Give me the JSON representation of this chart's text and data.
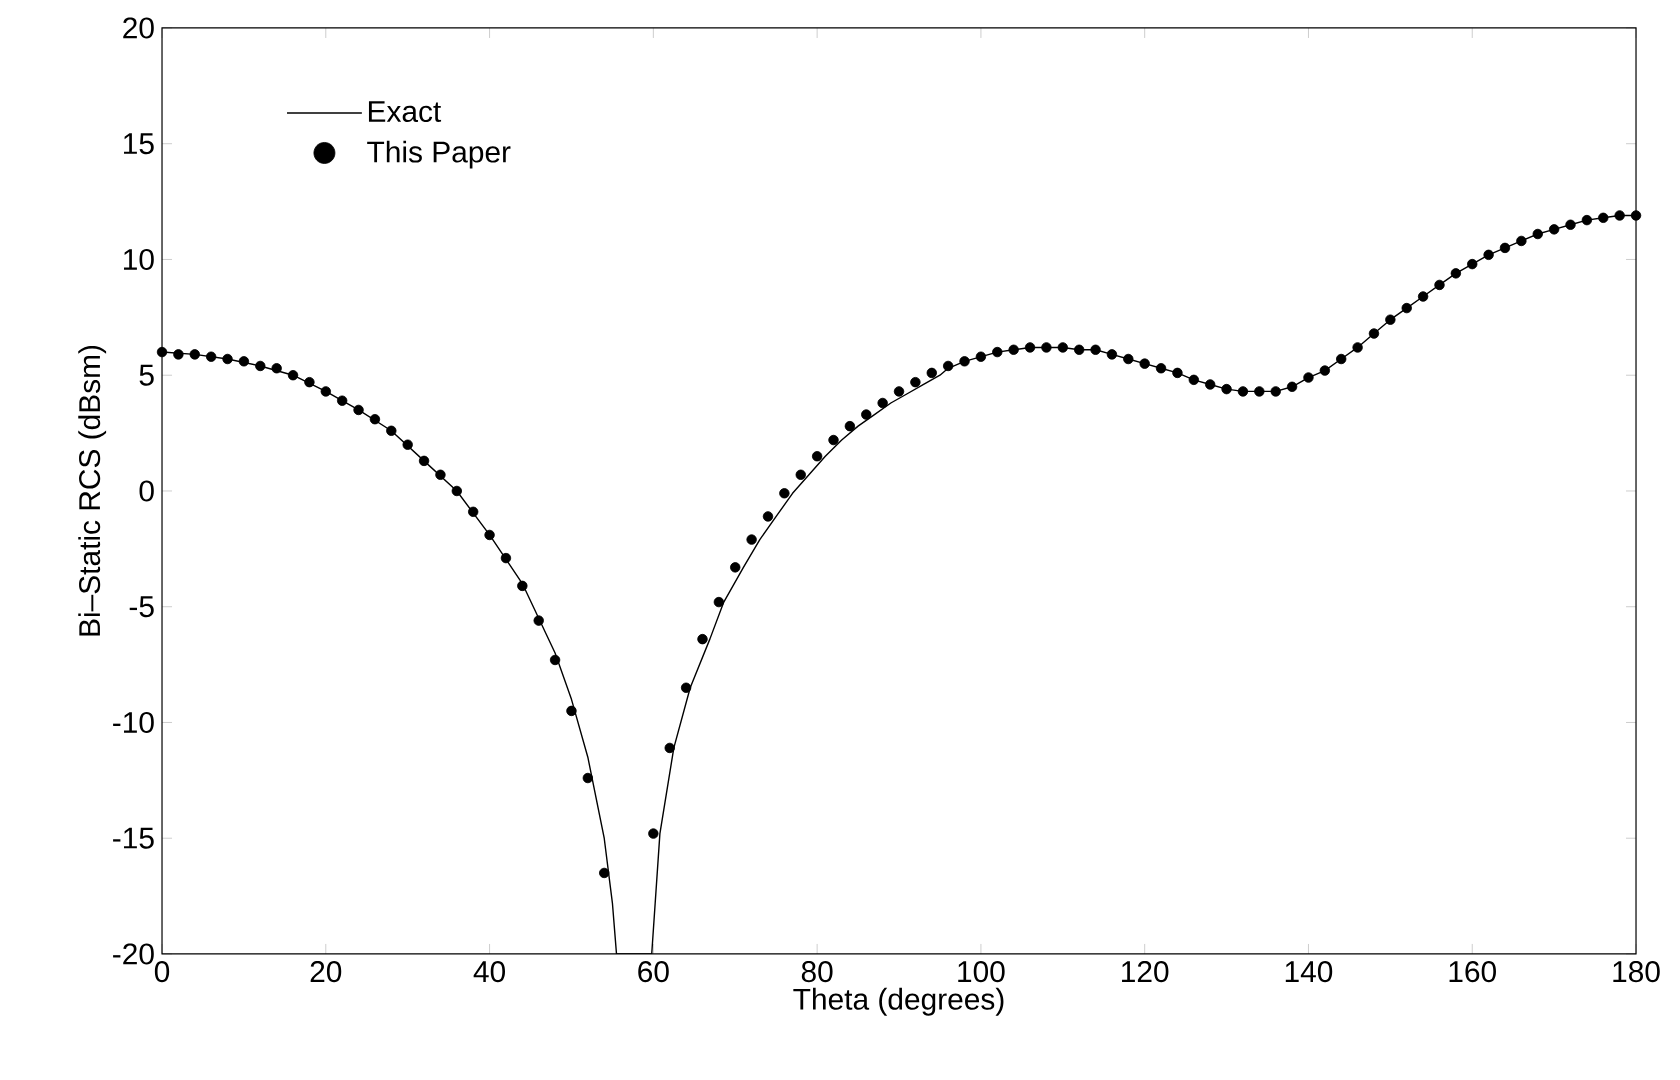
{
  "chart_data": {
    "type": "line",
    "xlabel": "Theta (degrees)",
    "ylabel": "Bi–Static RCS (dBsm)",
    "xlim": [
      0,
      180
    ],
    "ylim": [
      -20,
      20
    ],
    "xticks": [
      0,
      20,
      40,
      60,
      80,
      100,
      120,
      140,
      160,
      180
    ],
    "yticks": [
      -20,
      -15,
      -10,
      -5,
      0,
      5,
      10,
      15,
      20
    ],
    "legend": "top left",
    "grid": false,
    "series": [
      {
        "name": "Exact",
        "color": "#000000",
        "line_style": "solid",
        "x": [
          0,
          4,
          8,
          12,
          16,
          20,
          24,
          28,
          32,
          36,
          40,
          44,
          48,
          50,
          52,
          54,
          55,
          55.5,
          59.8,
          60.8,
          62.5,
          64.5,
          66.9,
          68.6,
          71,
          73,
          75,
          77,
          79,
          81,
          83,
          85,
          87,
          89,
          91,
          93,
          95,
          96,
          98,
          100,
          102,
          104,
          106,
          108,
          110,
          112,
          114,
          116,
          118,
          120,
          122,
          124,
          126,
          128,
          130,
          132,
          134,
          136,
          138,
          140,
          142,
          144,
          146,
          148,
          150,
          152,
          154,
          156,
          158,
          160,
          162,
          164,
          166,
          168,
          170,
          172,
          174,
          176,
          178,
          180
        ],
        "values": [
          6.0,
          5.9,
          5.7,
          5.4,
          5.0,
          4.3,
          3.5,
          2.6,
          1.3,
          0.0,
          -1.9,
          -4.0,
          -7.0,
          -9.0,
          -11.5,
          -15.0,
          -17.8,
          -20,
          -20,
          -14.8,
          -11.1,
          -8.5,
          -6.4,
          -4.8,
          -3.3,
          -2.1,
          -1.1,
          -0.1,
          0.7,
          1.5,
          2.2,
          2.8,
          3.3,
          3.8,
          4.2,
          4.6,
          5.0,
          5.3,
          5.6,
          5.8,
          6.0,
          6.1,
          6.2,
          6.2,
          6.2,
          6.1,
          6.1,
          5.9,
          5.7,
          5.5,
          5.3,
          5.1,
          4.8,
          4.6,
          4.4,
          4.3,
          4.3,
          4.3,
          4.5,
          4.9,
          5.2,
          5.7,
          6.2,
          6.8,
          7.4,
          7.9,
          8.4,
          8.9,
          9.4,
          9.8,
          10.2,
          10.5,
          10.8,
          11.1,
          11.3,
          11.5,
          11.7,
          11.8,
          11.9,
          11.9
        ]
      },
      {
        "name": "This Paper",
        "type": "scatter",
        "color": "#000000",
        "marker": "circle",
        "x": [
          0,
          2,
          4,
          6,
          8,
          10,
          12,
          14,
          16,
          18,
          20,
          22,
          24,
          26,
          28,
          30,
          32,
          34,
          36,
          38,
          40,
          42,
          44,
          46,
          48,
          50,
          52,
          54,
          60,
          62,
          64,
          66,
          68,
          70,
          72,
          74,
          76,
          78,
          80,
          82,
          84,
          86,
          88,
          90,
          92,
          94,
          96,
          98,
          100,
          102,
          104,
          106,
          108,
          110,
          112,
          114,
          116,
          118,
          120,
          122,
          124,
          126,
          128,
          130,
          132,
          134,
          136,
          138,
          140,
          142,
          144,
          146,
          148,
          150,
          152,
          154,
          156,
          158,
          160,
          162,
          164,
          166,
          168,
          170,
          172,
          174,
          176,
          178,
          180
        ],
        "values": [
          6.0,
          5.9,
          5.9,
          5.8,
          5.7,
          5.6,
          5.4,
          5.3,
          5.0,
          4.7,
          4.3,
          3.9,
          3.5,
          3.1,
          2.6,
          2.0,
          1.3,
          0.7,
          0.0,
          -0.9,
          -1.9,
          -2.9,
          -4.1,
          -5.6,
          -7.3,
          -9.5,
          -12.4,
          -16.5,
          -14.8,
          -11.1,
          -8.5,
          -6.4,
          -4.8,
          -3.3,
          -2.1,
          -1.1,
          -0.1,
          0.7,
          1.5,
          2.2,
          2.8,
          3.3,
          3.8,
          4.3,
          4.7,
          5.1,
          5.4,
          5.6,
          5.8,
          6.0,
          6.1,
          6.2,
          6.2,
          6.2,
          6.1,
          6.1,
          5.9,
          5.7,
          5.5,
          5.3,
          5.1,
          4.8,
          4.6,
          4.4,
          4.3,
          4.3,
          4.3,
          4.5,
          4.9,
          5.2,
          5.7,
          6.2,
          6.8,
          7.4,
          7.9,
          8.4,
          8.9,
          9.4,
          9.8,
          10.2,
          10.5,
          10.8,
          11.1,
          11.3,
          11.5,
          11.7,
          11.8,
          11.9,
          11.9
        ]
      }
    ]
  }
}
